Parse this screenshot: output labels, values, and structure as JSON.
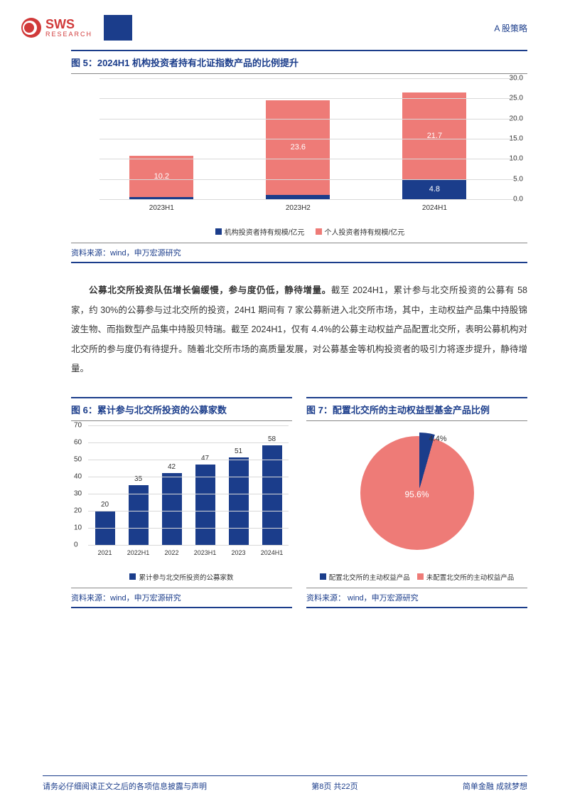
{
  "header": {
    "logo_main": "SWS",
    "logo_sub": "RESEARCH",
    "right_text": "A 股策略"
  },
  "chart5": {
    "title": "图 5：2024H1 机构投资者持有北证指数产品的比例提升",
    "ylim": [
      0,
      30
    ],
    "ytick_step": 5,
    "categories": [
      "2023H1",
      "2023H2",
      "2024H1"
    ],
    "series": [
      {
        "name": "机构投资者持有规模/亿元",
        "color": "#1b3d8b",
        "values": [
          0.6,
          1.0,
          4.8
        ]
      },
      {
        "name": "个人投资者持有规模/亿元",
        "color": "#ee7b77",
        "values": [
          10.2,
          23.6,
          21.7
        ]
      }
    ],
    "source": "资料来源：wind，申万宏源研究"
  },
  "body_text": {
    "bold": "公募北交所投资队伍增长偏缓慢，参与度仍低，静待增量。",
    "rest": "截至 2024H1，累计参与北交所投资的公募有 58 家，约 30%的公募参与过北交所的投资，24H1 期间有 7 家公募新进入北交所市场，其中，主动权益产品集中持股锦波生物、而指数型产品集中持股贝特瑞。截至 2024H1，仅有 4.4%的公募主动权益产品配置北交所，表明公募机构对北交所的参与度仍有待提升。随着北交所市场的高质量发展，对公募基金等机构投资者的吸引力将逐步提升，静待增量。"
  },
  "chart6": {
    "title": "图 6：累计参与北交所投资的公募家数",
    "ylim": [
      0,
      70
    ],
    "ytick_step": 10,
    "categories": [
      "2021",
      "2022H1",
      "2022",
      "2023H1",
      "2023",
      "2024H1"
    ],
    "values": [
      20,
      35,
      42,
      47,
      51,
      58
    ],
    "color": "#1b3d8b",
    "legend": "累计参与北交所投资的公募家数",
    "source": "资料来源：wind，申万宏源研究"
  },
  "chart7": {
    "title": "图 7：配置北交所的主动权益型基金产品比例",
    "slices": [
      {
        "name": "配置北交所的主动权益产品",
        "value": 4.4,
        "label": "4.4%",
        "color": "#1b3d8b"
      },
      {
        "name": "未配置北交所的主动权益产品",
        "value": 95.6,
        "label": "95.6%",
        "color": "#ee7b77"
      }
    ],
    "source": "资料来源： wind，申万宏源研究"
  },
  "footer": {
    "left": "请务必仔细阅读正文之后的各项信息披露与声明",
    "center": "第8页 共22页",
    "right": "简单金融 成就梦想"
  }
}
